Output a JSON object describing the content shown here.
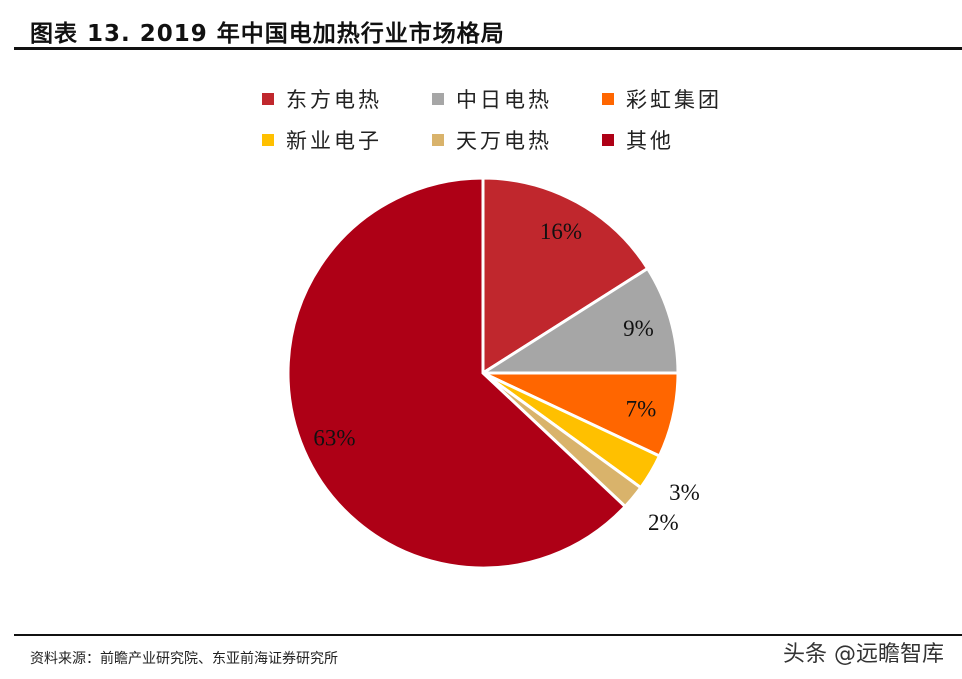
{
  "title": "图表 13. 2019 年中国电加热行业市场格局",
  "source": "资料来源：前瞻产业研究院、东亚前海证券研究所",
  "watermark": "头条 @远瞻智库",
  "chart_data": {
    "type": "pie",
    "title": "",
    "legend_position": "top",
    "start": "12 o'clock, clockwise",
    "slices": [
      {
        "name": "东方电热",
        "value": 16,
        "label": "16%",
        "color": "#C0272D"
      },
      {
        "name": "中日电热",
        "value": 9,
        "label": "9%",
        "color": "#A6A6A6"
      },
      {
        "name": "彩虹集团",
        "value": 7,
        "label": "7%",
        "color": "#FF6600"
      },
      {
        "name": "新业电子",
        "value": 3,
        "label": "3%",
        "color": "#FFC000"
      },
      {
        "name": "天万电热",
        "value": 2,
        "label": "2%",
        "color": "#D9B36B"
      },
      {
        "name": "其他",
        "value": 63,
        "label": "63%",
        "color": "#AE0016"
      }
    ]
  }
}
